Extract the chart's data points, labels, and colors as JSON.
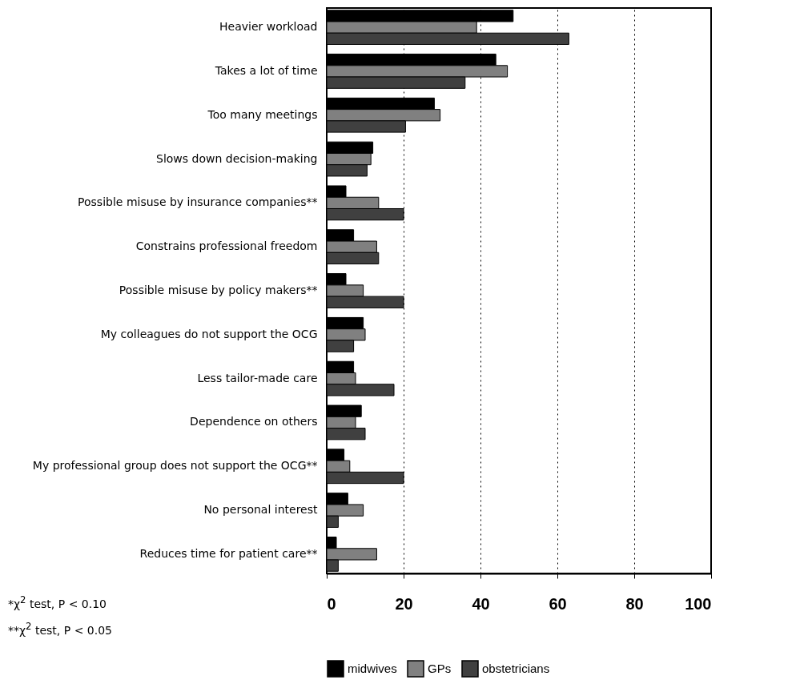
{
  "chart_data": {
    "type": "bar",
    "orientation": "horizontal",
    "categories": [
      "Heavier workload",
      "Takes a lot of time",
      "Too many meetings",
      "Slows down decision-making",
      "Possible misuse by insurance companies**",
      "Constrains professional freedom",
      "Possible misuse by policy makers**",
      "My colleagues do not support the OCG",
      "Less tailor-made care",
      "Dependence on others",
      "My professional group does not support the OCG**",
      "No personal interest",
      "Reduces time for patient care**"
    ],
    "series": [
      {
        "name": "midwives",
        "color": "#000000",
        "values": [
          48.5,
          44,
          28,
          12,
          5,
          7,
          5,
          9.5,
          7,
          9,
          4.5,
          5.5,
          2.5
        ]
      },
      {
        "name": "GPs",
        "color": "#808080",
        "values": [
          39,
          47,
          29.5,
          11.5,
          13.5,
          13,
          9.5,
          10,
          7.5,
          7.5,
          6,
          9.5,
          13
        ]
      },
      {
        "name": "obstetricians",
        "color": "#404040",
        "values": [
          63,
          36,
          20.5,
          10.5,
          20,
          13.5,
          20,
          7,
          17.5,
          10,
          20,
          3,
          3
        ]
      }
    ],
    "xlim": [
      0,
      100
    ],
    "xticks": [
      0,
      20,
      40,
      60,
      80,
      100
    ],
    "grid": "x",
    "legend": "bottom",
    "annotations": [
      "*χ$^{2}$ test, P < 0.10",
      "**χ$^{2}$ test, P < 0.05"
    ]
  }
}
